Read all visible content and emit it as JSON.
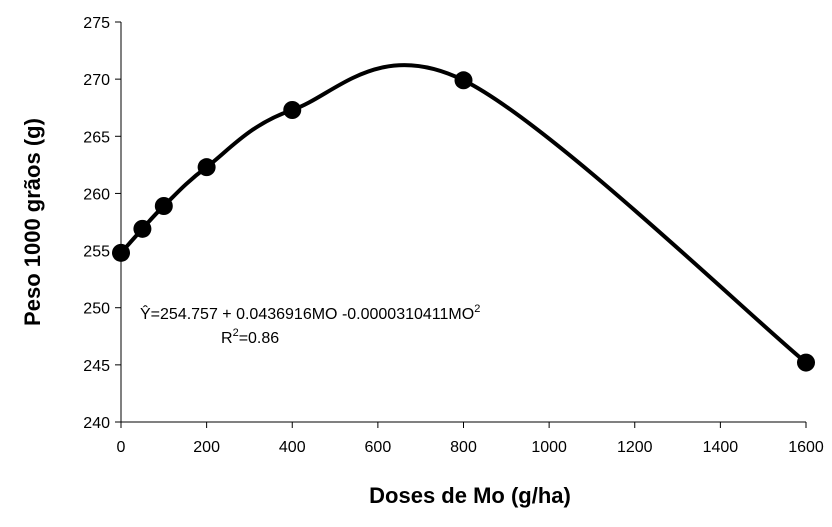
{
  "chart_data": {
    "type": "scatter",
    "xlabel": "Doses de Mo (g/ha)",
    "ylabel": "Peso 1000 grãos (g)",
    "xlim": [
      0,
      1600
    ],
    "ylim": [
      240,
      275
    ],
    "xticks": [
      0,
      200,
      400,
      600,
      800,
      1000,
      1200,
      1400,
      1600
    ],
    "yticks": [
      240,
      245,
      250,
      255,
      260,
      265,
      270,
      275
    ],
    "grid": false,
    "points": [
      {
        "x": 0,
        "y": 254.8
      },
      {
        "x": 50,
        "y": 256.9
      },
      {
        "x": 100,
        "y": 258.9
      },
      {
        "x": 200,
        "y": 262.3
      },
      {
        "x": 400,
        "y": 267.3
      },
      {
        "x": 800,
        "y": 269.9
      },
      {
        "x": 1600,
        "y": 245.2
      }
    ],
    "fit": {
      "intercept": 254.757,
      "linear": 0.0436916,
      "quadratic": -3.10411e-05
    },
    "annotation": {
      "equation_prefix": "Ŷ=254.757 + 0.0436916MO -0.0000310411MO",
      "equation_sup": "2",
      "r2_prefix": "R",
      "r2_sup": "2",
      "r2_value": "=0.86"
    }
  }
}
